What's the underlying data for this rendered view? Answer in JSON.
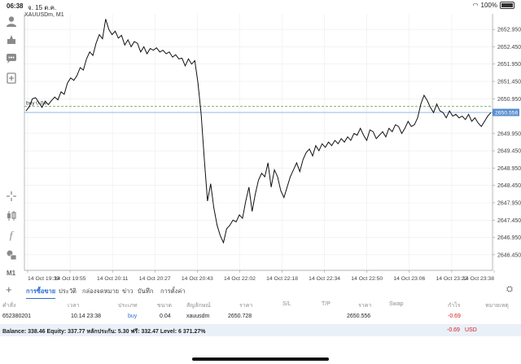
{
  "status": {
    "time": "06:38",
    "date": "จ. 15 ต.ค.",
    "battery": "100%"
  },
  "symbol": "XAUUSDm, M1",
  "toolbar": {
    "m1_label": "M1"
  },
  "chart_data": {
    "type": "line",
    "title": "XAUUSDm, M1",
    "ylim": [
      2646.0,
      2653.4
    ],
    "y_ticks": [
      "2652.950",
      "2652.450",
      "2651.950",
      "2651.450",
      "2650.950",
      "2649.950",
      "2649.450",
      "2648.950",
      "2648.450",
      "2647.950",
      "2647.450",
      "2646.950",
      "2646.450"
    ],
    "x_ticks": [
      "14 Oct 19:39",
      "14 Oct 19:55",
      "14 Oct 20:11",
      "14 Oct 20:27",
      "14 Oct 20:43",
      "14 Oct 22:02",
      "14 Oct 22:18",
      "14 Oct 22:34",
      "14 Oct 22:50",
      "14 Oct 23:06",
      "14 Oct 23:22",
      "14 Oct 23:38"
    ],
    "order_line": {
      "label": "buy 0.04",
      "price": 2650.728
    },
    "current_price": {
      "label": "2650.556",
      "value": 2650.556
    },
    "series": [
      {
        "values": [
          2650.6,
          2650.72,
          2650.95,
          2650.98,
          2650.85,
          2650.7,
          2650.88,
          2650.78,
          2650.9,
          2651.0,
          2650.92,
          2651.15,
          2651.08,
          2651.4,
          2651.55,
          2651.48,
          2651.62,
          2651.85,
          2651.78,
          2652.1,
          2652.3,
          2652.2,
          2652.55,
          2652.8,
          2652.68,
          2653.25,
          2652.95,
          2652.8,
          2652.9,
          2652.7,
          2652.78,
          2652.5,
          2652.65,
          2652.45,
          2652.6,
          2652.55,
          2652.3,
          2652.45,
          2652.25,
          2652.4,
          2652.35,
          2652.42,
          2652.3,
          2652.35,
          2652.25,
          2652.3,
          2652.15,
          2652.22,
          2652.1,
          2652.12,
          2651.9,
          2652.1,
          2651.95,
          2652.05,
          2651.4,
          2650.5,
          2649.2,
          2648.0,
          2648.5,
          2647.8,
          2647.3,
          2647.0,
          2646.8,
          2647.2,
          2647.3,
          2647.45,
          2647.4,
          2647.6,
          2647.5,
          2648.0,
          2648.4,
          2647.7,
          2648.2,
          2648.6,
          2648.8,
          2648.7,
          2649.1,
          2648.4,
          2648.9,
          2648.7,
          2648.3,
          2648.1,
          2648.4,
          2648.7,
          2648.9,
          2649.1,
          2648.85,
          2649.2,
          2649.4,
          2649.5,
          2649.3,
          2649.6,
          2649.45,
          2649.65,
          2649.55,
          2649.7,
          2649.6,
          2649.75,
          2649.65,
          2649.8,
          2649.7,
          2649.85,
          2649.75,
          2649.95,
          2649.9,
          2650.1,
          2649.9,
          2649.75,
          2650.05,
          2650.0,
          2649.8,
          2649.9,
          2650.0,
          2649.85,
          2650.1,
          2650.0,
          2650.2,
          2650.15,
          2649.95,
          2650.1,
          2650.3,
          2650.15,
          2650.2,
          2650.4,
          2650.8,
          2651.05,
          2650.9,
          2650.7,
          2650.55,
          2650.8,
          2650.6,
          2650.55,
          2650.4,
          2650.6,
          2650.45,
          2650.5,
          2650.4,
          2650.45,
          2650.35,
          2650.5,
          2650.3,
          2650.4,
          2650.25,
          2650.15,
          2650.3,
          2650.45,
          2650.55
        ]
      }
    ]
  },
  "tabs": [
    {
      "label": "การซื้อขาย",
      "active": true
    },
    {
      "label": "ประวัติ",
      "active": false
    },
    {
      "label": "กล่องจดหมาย",
      "active": false
    },
    {
      "label": "ข่าว",
      "active": false
    },
    {
      "label": "บันทึก",
      "active": false
    },
    {
      "label": "การตั้งค่า",
      "active": false
    }
  ],
  "table": {
    "headers": [
      "คำสั่ง",
      "เวลา",
      "ประเภท",
      "ขนาด",
      "สัญลักษณ์",
      "ราคา",
      "S/L",
      "T/P",
      "ราคา",
      "Swap",
      "กำไร",
      "หมายเหตุ"
    ],
    "row": [
      "652380201",
      "10.14 23:38",
      "buy",
      "0.04",
      "xauusdm",
      "2650.728",
      "",
      "",
      "2650.556",
      "",
      "-0.69",
      ""
    ]
  },
  "balance": {
    "text": "Balance: 338.46 Equity: 337.77 หลักประกัน: 5.30 ฟรี: 332.47 Level: 6 371.27%",
    "profit": "-0.69",
    "currency": "USD"
  },
  "colors": {
    "accent": "#2e6fd1",
    "loss": "#d62020",
    "line": "#111111",
    "order_line": "#4a9a4a",
    "price_line": "#5a8fd0"
  }
}
